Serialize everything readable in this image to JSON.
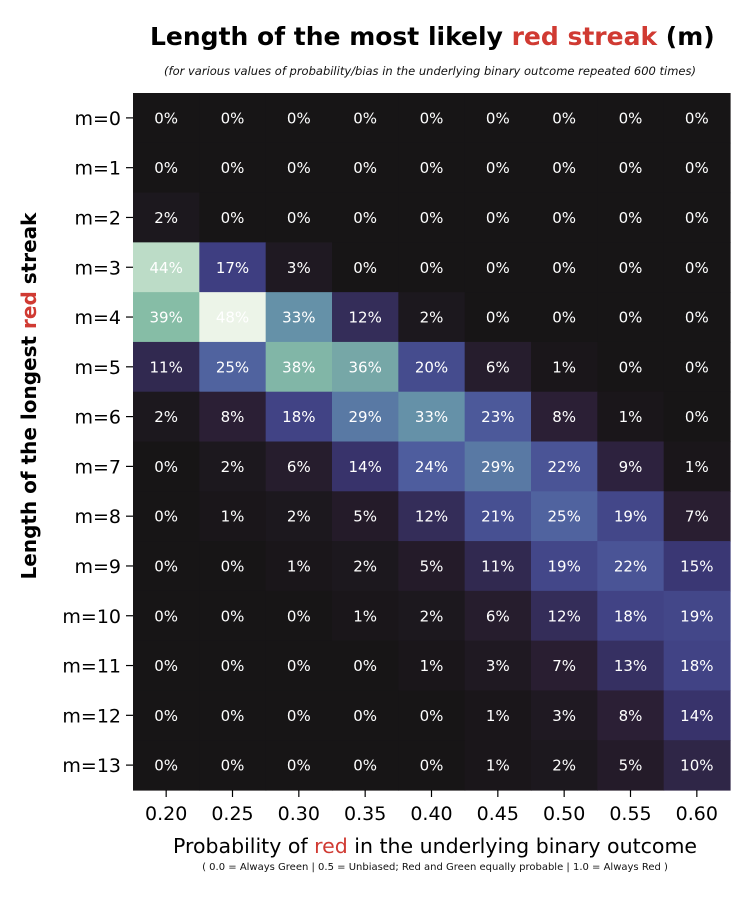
{
  "chart_data": {
    "type": "heatmap",
    "title": {
      "before": "Length of the most likely ",
      "highlight": "red streak",
      "after": " (m)"
    },
    "subtitle": "(for various values of probability/bias in the underlying binary outcome repeated 600 times)",
    "xlabel": {
      "before": "Probability of ",
      "highlight": "red",
      "after": " in the underlying binary outcome"
    },
    "xnote": "( 0.0 = Always Green | 0.5 = Unbiased; Red and Green equally probable | 1.0 = Always Red )",
    "ylabel": {
      "before": "Length of the longest ",
      "highlight": "red",
      "after": " streak"
    },
    "x": [
      "0.20",
      "0.25",
      "0.30",
      "0.35",
      "0.40",
      "0.45",
      "0.50",
      "0.55",
      "0.60"
    ],
    "y": [
      "m=0",
      "m=1",
      "m=2",
      "m=3",
      "m=4",
      "m=5",
      "m=6",
      "m=7",
      "m=8",
      "m=9",
      "m=10",
      "m=11",
      "m=12",
      "m=13"
    ],
    "values": [
      [
        0,
        0,
        0,
        0,
        0,
        0,
        0,
        0,
        0
      ],
      [
        0,
        0,
        0,
        0,
        0,
        0,
        0,
        0,
        0
      ],
      [
        2,
        0,
        0,
        0,
        0,
        0,
        0,
        0,
        0
      ],
      [
        44,
        17,
        3,
        0,
        0,
        0,
        0,
        0,
        0
      ],
      [
        39,
        48,
        33,
        12,
        2,
        0,
        0,
        0,
        0
      ],
      [
        11,
        25,
        38,
        36,
        20,
        6,
        1,
        0,
        0
      ],
      [
        2,
        8,
        18,
        29,
        33,
        23,
        8,
        1,
        0
      ],
      [
        0,
        2,
        6,
        14,
        24,
        29,
        22,
        9,
        1
      ],
      [
        0,
        1,
        2,
        5,
        12,
        21,
        25,
        19,
        7
      ],
      [
        0,
        0,
        1,
        2,
        5,
        11,
        19,
        22,
        15
      ],
      [
        0,
        0,
        0,
        1,
        2,
        6,
        12,
        18,
        19
      ],
      [
        0,
        0,
        0,
        0,
        1,
        3,
        7,
        13,
        18
      ],
      [
        0,
        0,
        0,
        0,
        0,
        1,
        3,
        8,
        14
      ],
      [
        0,
        0,
        0,
        0,
        0,
        1,
        2,
        5,
        10
      ]
    ],
    "value_suffix": "%",
    "colormap": [
      "#171516",
      "#2b1f35",
      "#3c3a7d",
      "#4e5d9e",
      "#5f8aa8",
      "#8cc4a6",
      "#ecf4e8"
    ],
    "vmax": 48,
    "label_color": "#ffffff",
    "axis_color": "#000000",
    "grid": false,
    "legend": "none"
  }
}
